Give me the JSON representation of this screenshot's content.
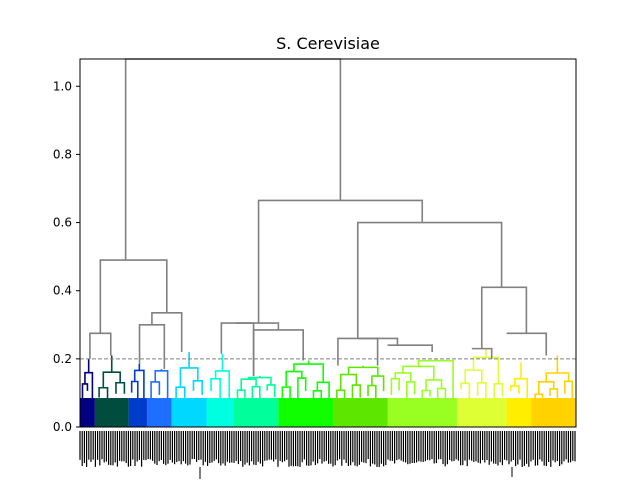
{
  "chart_data": {
    "type": "dendrogram",
    "title": "S. Cerevisiae",
    "xlabel": "",
    "ylabel": "",
    "ylim": [
      0.0,
      1.08
    ],
    "yticks": [
      0.0,
      0.2,
      0.4,
      0.6,
      0.8,
      1.0
    ],
    "ytick_labels": [
      "0.0",
      "0.2",
      "0.4",
      "0.6",
      "0.8",
      "1.0"
    ],
    "threshold": 0.2,
    "threshold_style": "dashed grey",
    "upper_link_color": "#808080",
    "leaf_labels": "dense rotated leaf labels (illegible)",
    "clusters": [
      {
        "color": "#000080",
        "x": [
          0.0,
          0.03
        ],
        "max_height": 0.2
      },
      {
        "color": "#004d40",
        "x": [
          0.03,
          0.098
        ],
        "max_height": 0.21
      },
      {
        "color": "#003ccc",
        "x": [
          0.098,
          0.135
        ],
        "max_height": 0.185
      },
      {
        "color": "#1f6fff",
        "x": [
          0.135,
          0.185
        ],
        "max_height": 0.17
      },
      {
        "color": "#00d8ff",
        "x": [
          0.185,
          0.255
        ],
        "max_height": 0.22
      },
      {
        "color": "#00ffe0",
        "x": [
          0.255,
          0.31
        ],
        "max_height": 0.215
      },
      {
        "color": "#00ff9a",
        "x": [
          0.31,
          0.4
        ],
        "max_height": 0.15
      },
      {
        "color": "#10ff00",
        "x": [
          0.4,
          0.51
        ],
        "max_height": 0.195
      },
      {
        "color": "#5ce600",
        "x": [
          0.51,
          0.62
        ],
        "max_height": 0.18
      },
      {
        "color": "#99ff22",
        "x": [
          0.62,
          0.76
        ],
        "max_height": 0.2
      },
      {
        "color": "#ddff33",
        "x": [
          0.76,
          0.86
        ],
        "max_height": 0.23
      },
      {
        "color": "#ffee00",
        "x": [
          0.86,
          0.91
        ],
        "max_height": 0.19
      },
      {
        "color": "#ffd200",
        "x": [
          0.91,
          1.0
        ],
        "max_height": 0.21
      }
    ],
    "links": [
      {
        "left": [
          0.02,
          0.2
        ],
        "right": [
          0.062,
          0.21
        ],
        "height": 0.275
      },
      {
        "left": [
          0.12,
          0.185
        ],
        "right": [
          0.17,
          0.17
        ],
        "height": 0.3
      },
      {
        "left": [
          0.145,
          0.3
        ],
        "right": [
          0.205,
          0.22
        ],
        "height": 0.335
      },
      {
        "left": [
          0.041,
          0.275
        ],
        "right": [
          0.175,
          0.335
        ],
        "height": 0.49
      },
      {
        "left": [
          0.285,
          0.215
        ],
        "right": [
          0.35,
          0.15
        ],
        "height": 0.305
      },
      {
        "left": [
          0.35,
          0.15
        ],
        "right": [
          0.45,
          0.195
        ],
        "height": 0.285
      },
      {
        "left": [
          0.315,
          0.305
        ],
        "right": [
          0.4,
          0.285
        ],
        "height": 0.305
      },
      {
        "left": [
          0.52,
          0.18
        ],
        "right": [
          0.6,
          0.18
        ],
        "height": 0.26
      },
      {
        "left": [
          0.56,
          0.26
        ],
        "right": [
          0.64,
          0.24
        ],
        "height": 0.26
      },
      {
        "left": [
          0.62,
          0.24
        ],
        "right": [
          0.71,
          0.22
        ],
        "height": 0.24
      },
      {
        "left": [
          0.79,
          0.23
        ],
        "right": [
          0.83,
          0.2
        ],
        "height": 0.23
      },
      {
        "left": [
          0.86,
          0.275
        ],
        "right": [
          0.94,
          0.21
        ],
        "height": 0.275
      },
      {
        "left": [
          0.81,
          0.23
        ],
        "right": [
          0.9,
          0.275
        ],
        "height": 0.41
      },
      {
        "left": [
          0.56,
          0.26
        ],
        "right": [
          0.85,
          0.41
        ],
        "height": 0.6
      },
      {
        "left": [
          0.36,
          0.305
        ],
        "right": [
          0.69,
          0.6
        ],
        "height": 0.665
      },
      {
        "left": [
          0.092,
          0.49
        ],
        "right": [
          0.525,
          0.665
        ],
        "height": 1.08
      }
    ]
  }
}
